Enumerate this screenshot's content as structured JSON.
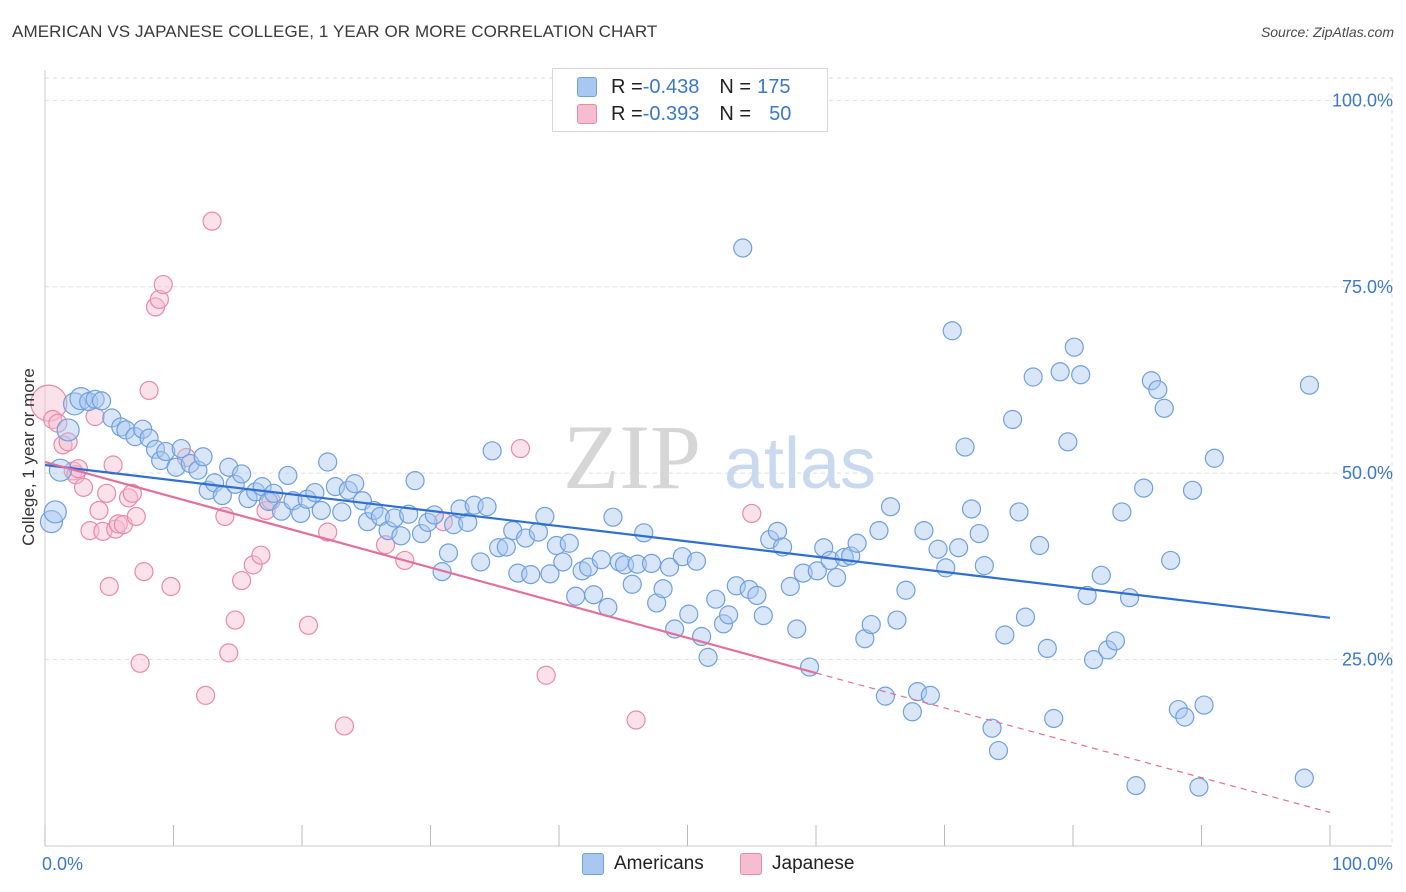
{
  "title": "AMERICAN VS JAPANESE COLLEGE, 1 YEAR OR MORE CORRELATION CHART",
  "source": "Source: ZipAtlas.com",
  "watermark": {
    "zip": "ZIP",
    "atlas": "atlas"
  },
  "legend": {
    "rows": [
      {
        "r_label": "R = ",
        "r_value": "-0.438",
        "n_label": "N = ",
        "n_value": "175",
        "color": "#a9c8ef",
        "border": "#6fa0df"
      },
      {
        "r_label": "R = ",
        "r_value": "-0.393",
        "n_label": "N = ",
        "n_value": "50",
        "color": "#f6bcd0",
        "border": "#e88aab"
      }
    ]
  },
  "bottom_legend": [
    {
      "label": "Americans",
      "color": "#a9c8ef",
      "border": "#6fa0df"
    },
    {
      "label": "Japanese",
      "color": "#f6bcd0",
      "border": "#e88aab"
    }
  ],
  "chart_data": {
    "type": "scatter",
    "title": "AMERICAN VS JAPANESE COLLEGE, 1 YEAR OR MORE CORRELATION CHART",
    "xlabel": "",
    "ylabel": "College, 1 year or more",
    "xlim": [
      0,
      100
    ],
    "ylim": [
      0,
      103
    ],
    "x_tick_labels": [
      "0.0%",
      "100.0%"
    ],
    "y_ticks": [
      25,
      50,
      75,
      100
    ],
    "y_tick_labels": [
      "25.0%",
      "50.0%",
      "75.0%",
      "100.0%"
    ],
    "series": [
      {
        "name": "Americans",
        "color": "#6fa0df",
        "fill": "#a9c8ef",
        "trend": {
          "x0": 0,
          "y0": 51.1,
          "x1": 100,
          "y1": 30.6,
          "color": "#2f6fd1"
        },
        "points": [
          [
            0.5,
            43.5
          ],
          [
            0.8,
            44.8
          ],
          [
            1.2,
            50.4
          ],
          [
            1.8,
            55.8
          ],
          [
            2.3,
            59.3
          ],
          [
            2.8,
            60.0
          ],
          [
            3.4,
            59.6
          ],
          [
            3.9,
            59.9
          ],
          [
            4.4,
            59.7
          ],
          [
            5.2,
            57.4
          ],
          [
            5.9,
            56.2
          ],
          [
            6.3,
            55.8
          ],
          [
            7.0,
            54.9
          ],
          [
            7.6,
            55.9
          ],
          [
            8.1,
            54.7
          ],
          [
            8.6,
            53.2
          ],
          [
            9.0,
            51.7
          ],
          [
            9.4,
            52.9
          ],
          [
            10.2,
            50.8
          ],
          [
            10.6,
            53.3
          ],
          [
            11.3,
            51.3
          ],
          [
            11.9,
            50.4
          ],
          [
            12.3,
            52.2
          ],
          [
            12.7,
            47.7
          ],
          [
            13.2,
            48.7
          ],
          [
            13.8,
            47.0
          ],
          [
            14.3,
            50.8
          ],
          [
            14.8,
            48.5
          ],
          [
            15.3,
            49.9
          ],
          [
            15.8,
            46.6
          ],
          [
            16.4,
            47.5
          ],
          [
            16.9,
            48.2
          ],
          [
            17.4,
            46.2
          ],
          [
            17.8,
            47.3
          ],
          [
            18.4,
            44.9
          ],
          [
            18.9,
            49.7
          ],
          [
            19.3,
            46.3
          ],
          [
            19.9,
            44.6
          ],
          [
            20.4,
            46.5
          ],
          [
            21.0,
            47.4
          ],
          [
            21.5,
            45.0
          ],
          [
            22.0,
            51.5
          ],
          [
            22.6,
            48.2
          ],
          [
            23.1,
            44.8
          ],
          [
            23.6,
            47.7
          ],
          [
            24.1,
            48.6
          ],
          [
            24.7,
            46.3
          ],
          [
            25.1,
            43.5
          ],
          [
            25.6,
            45.0
          ],
          [
            26.1,
            44.2
          ],
          [
            26.7,
            42.3
          ],
          [
            27.2,
            44.0
          ],
          [
            27.7,
            41.6
          ],
          [
            28.3,
            44.5
          ],
          [
            28.8,
            49.0
          ],
          [
            29.3,
            41.9
          ],
          [
            29.8,
            43.4
          ],
          [
            30.3,
            44.4
          ],
          [
            30.9,
            36.8
          ],
          [
            31.4,
            39.3
          ],
          [
            31.8,
            43.1
          ],
          [
            32.3,
            45.2
          ],
          [
            32.9,
            43.4
          ],
          [
            33.4,
            45.7
          ],
          [
            33.9,
            38.1
          ],
          [
            34.4,
            45.5
          ],
          [
            34.8,
            53.0
          ],
          [
            35.3,
            40.0
          ],
          [
            35.9,
            40.1
          ],
          [
            36.4,
            42.3
          ],
          [
            36.8,
            36.6
          ],
          [
            37.4,
            41.3
          ],
          [
            37.8,
            36.4
          ],
          [
            38.4,
            42.1
          ],
          [
            38.9,
            44.2
          ],
          [
            39.3,
            36.5
          ],
          [
            39.8,
            40.3
          ],
          [
            40.3,
            38.1
          ],
          [
            40.8,
            40.6
          ],
          [
            41.3,
            33.5
          ],
          [
            41.8,
            36.9
          ],
          [
            42.3,
            37.4
          ],
          [
            42.7,
            33.7
          ],
          [
            43.3,
            38.4
          ],
          [
            43.8,
            32.0
          ],
          [
            44.2,
            44.1
          ],
          [
            44.7,
            38.1
          ],
          [
            45.1,
            37.7
          ],
          [
            45.7,
            35.1
          ],
          [
            46.1,
            37.8
          ],
          [
            46.6,
            42.0
          ],
          [
            47.2,
            37.9
          ],
          [
            47.6,
            32.6
          ],
          [
            48.1,
            34.5
          ],
          [
            48.6,
            37.4
          ],
          [
            49.0,
            29.1
          ],
          [
            49.6,
            38.8
          ],
          [
            50.1,
            31.1
          ],
          [
            50.7,
            38.2
          ],
          [
            51.1,
            28.1
          ],
          [
            51.6,
            25.3
          ],
          [
            52.2,
            33.1
          ],
          [
            52.8,
            29.8
          ],
          [
            53.2,
            31.0
          ],
          [
            53.8,
            34.9
          ],
          [
            54.3,
            80.2
          ],
          [
            54.8,
            34.4
          ],
          [
            55.4,
            33.6
          ],
          [
            55.9,
            30.9
          ],
          [
            56.4,
            41.1
          ],
          [
            57.0,
            42.2
          ],
          [
            57.4,
            40.1
          ],
          [
            58.0,
            34.8
          ],
          [
            58.5,
            29.1
          ],
          [
            59.0,
            36.6
          ],
          [
            59.5,
            24.0
          ],
          [
            60.1,
            36.9
          ],
          [
            60.6,
            40.0
          ],
          [
            61.1,
            38.3
          ],
          [
            61.6,
            36.0
          ],
          [
            62.2,
            38.7
          ],
          [
            62.7,
            38.9
          ],
          [
            63.2,
            40.6
          ],
          [
            63.8,
            27.8
          ],
          [
            64.3,
            29.7
          ],
          [
            64.9,
            42.3
          ],
          [
            65.4,
            20.1
          ],
          [
            65.8,
            45.5
          ],
          [
            66.3,
            30.3
          ],
          [
            67.0,
            34.3
          ],
          [
            67.5,
            18.0
          ],
          [
            67.9,
            20.7
          ],
          [
            68.4,
            42.3
          ],
          [
            68.9,
            20.2
          ],
          [
            69.5,
            39.8
          ],
          [
            70.1,
            37.3
          ],
          [
            70.6,
            69.1
          ],
          [
            71.1,
            40.0
          ],
          [
            71.6,
            53.5
          ],
          [
            72.1,
            45.2
          ],
          [
            72.7,
            41.9
          ],
          [
            73.1,
            37.6
          ],
          [
            73.7,
            15.8
          ],
          [
            74.2,
            12.8
          ],
          [
            74.7,
            28.3
          ],
          [
            75.3,
            57.2
          ],
          [
            75.8,
            44.8
          ],
          [
            76.3,
            30.7
          ],
          [
            76.9,
            62.9
          ],
          [
            77.4,
            40.3
          ],
          [
            78.0,
            26.5
          ],
          [
            78.5,
            17.1
          ],
          [
            79.0,
            63.6
          ],
          [
            79.6,
            54.2
          ],
          [
            80.1,
            66.9
          ],
          [
            80.6,
            63.2
          ],
          [
            81.1,
            33.6
          ],
          [
            81.6,
            25.0
          ],
          [
            82.2,
            36.3
          ],
          [
            82.7,
            26.3
          ],
          [
            83.3,
            27.5
          ],
          [
            83.8,
            44.8
          ],
          [
            84.4,
            33.3
          ],
          [
            84.9,
            8.1
          ],
          [
            85.5,
            48.0
          ],
          [
            86.1,
            62.4
          ],
          [
            86.6,
            61.2
          ],
          [
            87.1,
            58.7
          ],
          [
            87.6,
            38.3
          ],
          [
            88.2,
            18.3
          ],
          [
            88.7,
            17.3
          ],
          [
            89.3,
            47.7
          ],
          [
            89.8,
            7.9
          ],
          [
            90.2,
            18.9
          ],
          [
            91.0,
            52.0
          ],
          [
            98.0,
            9.1
          ],
          [
            98.4,
            61.8
          ]
        ]
      },
      {
        "name": "Japanese",
        "color": "#e88aab",
        "fill": "#f6bcd0",
        "trend": {
          "x0": 0,
          "y0": 51.5,
          "x1": 60,
          "y1": 23.2,
          "color": "#e2709a",
          "dashed_extension_to": {
            "x": 100,
            "y": 4.5
          }
        },
        "points": [
          [
            0.3,
            59.4
          ],
          [
            0.6,
            57.2
          ],
          [
            1.0,
            56.7
          ],
          [
            1.4,
            53.8
          ],
          [
            1.8,
            54.2
          ],
          [
            2.2,
            50.3
          ],
          [
            2.4,
            49.8
          ],
          [
            2.6,
            50.6
          ],
          [
            3.0,
            48.1
          ],
          [
            3.5,
            42.3
          ],
          [
            3.9,
            57.6
          ],
          [
            4.2,
            45.0
          ],
          [
            4.5,
            42.2
          ],
          [
            4.8,
            47.3
          ],
          [
            5.0,
            34.8
          ],
          [
            5.3,
            51.1
          ],
          [
            5.5,
            42.5
          ],
          [
            5.7,
            43.2
          ],
          [
            6.1,
            43.1
          ],
          [
            6.5,
            46.7
          ],
          [
            6.8,
            47.3
          ],
          [
            7.1,
            44.2
          ],
          [
            7.4,
            24.5
          ],
          [
            7.7,
            36.8
          ],
          [
            8.1,
            61.1
          ],
          [
            8.6,
            72.3
          ],
          [
            8.9,
            73.3
          ],
          [
            9.2,
            75.3
          ],
          [
            9.8,
            34.8
          ],
          [
            11.0,
            52.1
          ],
          [
            12.5,
            20.2
          ],
          [
            13.0,
            83.8
          ],
          [
            14.0,
            44.2
          ],
          [
            14.3,
            25.9
          ],
          [
            14.8,
            30.3
          ],
          [
            15.3,
            35.6
          ],
          [
            16.2,
            37.7
          ],
          [
            16.8,
            39.0
          ],
          [
            17.2,
            45.0
          ],
          [
            17.6,
            46.3
          ],
          [
            20.5,
            29.6
          ],
          [
            22.0,
            42.1
          ],
          [
            23.3,
            16.1
          ],
          [
            26.5,
            40.4
          ],
          [
            28.0,
            38.3
          ],
          [
            31.0,
            43.5
          ],
          [
            37.0,
            53.3
          ],
          [
            39.0,
            22.9
          ],
          [
            46.0,
            16.9
          ],
          [
            55.0,
            44.6
          ]
        ]
      }
    ]
  }
}
